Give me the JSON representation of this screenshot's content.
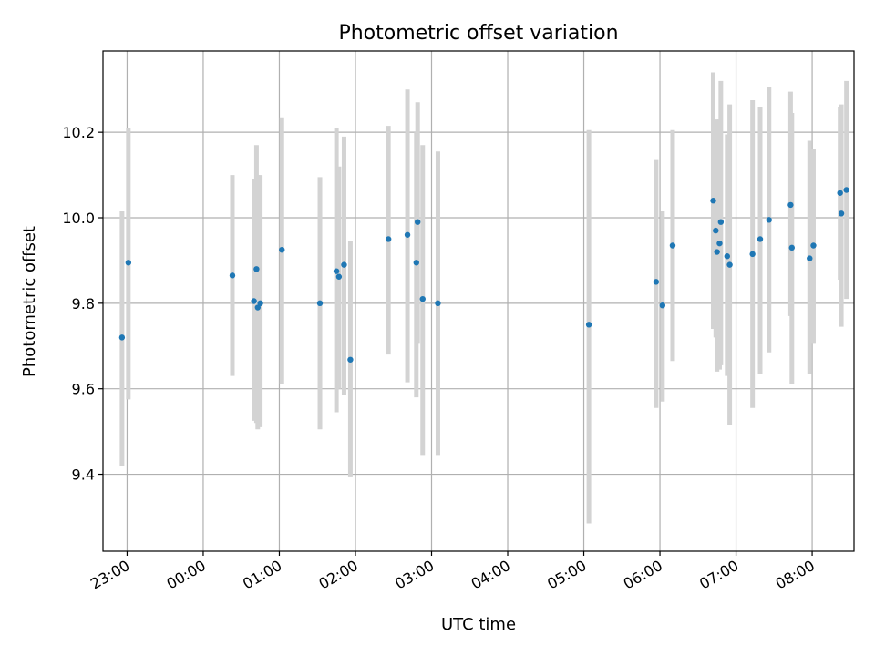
{
  "chart_data": {
    "type": "scatter",
    "title": "Photometric offset variation",
    "xlabel": "UTC time",
    "ylabel": "Photometric offset",
    "x_is_time": true,
    "xlim": [
      "22:41",
      "08:33"
    ],
    "ylim": [
      9.22,
      10.39
    ],
    "yticks": [
      9.4,
      9.6,
      9.8,
      10.0,
      10.2
    ],
    "ytick_labels": [
      "9.4",
      "9.6",
      "9.8",
      "10.0",
      "10.2"
    ],
    "xticks": [
      "23:00",
      "00:00",
      "01:00",
      "02:00",
      "03:00",
      "04:00",
      "05:00",
      "06:00",
      "07:00",
      "08:00"
    ],
    "xtick_labels": [
      "23:00",
      "00:00",
      "01:00",
      "02:00",
      "03:00",
      "04:00",
      "05:00",
      "06:00",
      "07:00",
      "08:00"
    ],
    "grid": true,
    "marker_color": "#1f77b4",
    "errorbar_color": "#d3d3d3",
    "points": [
      {
        "t": "22:56",
        "y": 9.72,
        "lo": 9.42,
        "hi": 10.015
      },
      {
        "t": "23:01",
        "y": 9.895,
        "lo": 9.575,
        "hi": 10.21
      },
      {
        "t": "00:23",
        "y": 9.865,
        "lo": 9.63,
        "hi": 10.1
      },
      {
        "t": "00:40",
        "y": 9.805,
        "lo": 9.525,
        "hi": 10.09
      },
      {
        "t": "00:42",
        "y": 9.88,
        "lo": 9.52,
        "hi": 10.17
      },
      {
        "t": "00:43",
        "y": 9.79,
        "lo": 9.505,
        "hi": 10.1
      },
      {
        "t": "00:45",
        "y": 9.8,
        "lo": 9.51,
        "hi": 10.1
      },
      {
        "t": "01:02",
        "y": 9.925,
        "lo": 9.61,
        "hi": 10.235
      },
      {
        "t": "01:32",
        "y": 9.8,
        "lo": 9.505,
        "hi": 10.095
      },
      {
        "t": "01:45",
        "y": 9.875,
        "lo": 9.545,
        "hi": 10.21
      },
      {
        "t": "01:47",
        "y": 9.862,
        "lo": 9.6,
        "hi": 10.12
      },
      {
        "t": "01:51",
        "y": 9.89,
        "lo": 9.585,
        "hi": 10.19
      },
      {
        "t": "01:56",
        "y": 9.668,
        "lo": 9.395,
        "hi": 9.945
      },
      {
        "t": "02:26",
        "y": 9.95,
        "lo": 9.68,
        "hi": 10.215
      },
      {
        "t": "02:41",
        "y": 9.96,
        "lo": 9.615,
        "hi": 10.3
      },
      {
        "t": "02:48",
        "y": 9.895,
        "lo": 9.58,
        "hi": 10.2
      },
      {
        "t": "02:49",
        "y": 9.99,
        "lo": 9.705,
        "hi": 10.27
      },
      {
        "t": "02:53",
        "y": 9.81,
        "lo": 9.445,
        "hi": 10.17
      },
      {
        "t": "03:05",
        "y": 9.8,
        "lo": 9.445,
        "hi": 10.155
      },
      {
        "t": "05:04",
        "y": 9.75,
        "lo": 9.285,
        "hi": 10.205
      },
      {
        "t": "05:57",
        "y": 9.85,
        "lo": 9.555,
        "hi": 10.135
      },
      {
        "t": "06:02",
        "y": 9.795,
        "lo": 9.57,
        "hi": 10.015
      },
      {
        "t": "06:10",
        "y": 9.935,
        "lo": 9.665,
        "hi": 10.205
      },
      {
        "t": "06:42",
        "y": 10.04,
        "lo": 9.74,
        "hi": 10.34
      },
      {
        "t": "06:44",
        "y": 9.97,
        "lo": 9.72,
        "hi": 10.23
      },
      {
        "t": "06:45",
        "y": 9.92,
        "lo": 9.64,
        "hi": 10.2
      },
      {
        "t": "06:47",
        "y": 9.94,
        "lo": 9.645,
        "hi": 10.23
      },
      {
        "t": "06:48",
        "y": 9.99,
        "lo": 9.655,
        "hi": 10.32
      },
      {
        "t": "06:53",
        "y": 9.91,
        "lo": 9.63,
        "hi": 10.195
      },
      {
        "t": "06:55",
        "y": 9.89,
        "lo": 9.515,
        "hi": 10.265
      },
      {
        "t": "07:13",
        "y": 9.915,
        "lo": 9.555,
        "hi": 10.275
      },
      {
        "t": "07:19",
        "y": 9.95,
        "lo": 9.635,
        "hi": 10.26
      },
      {
        "t": "07:26",
        "y": 9.995,
        "lo": 9.685,
        "hi": 10.305
      },
      {
        "t": "07:43",
        "y": 10.03,
        "lo": 9.77,
        "hi": 10.295
      },
      {
        "t": "07:44",
        "y": 9.93,
        "lo": 9.61,
        "hi": 10.245
      },
      {
        "t": "07:58",
        "y": 9.905,
        "lo": 9.635,
        "hi": 10.18
      },
      {
        "t": "08:01",
        "y": 9.935,
        "lo": 9.705,
        "hi": 10.16
      },
      {
        "t": "08:22",
        "y": 10.058,
        "lo": 9.855,
        "hi": 10.26
      },
      {
        "t": "08:23",
        "y": 10.01,
        "lo": 9.745,
        "hi": 10.265
      },
      {
        "t": "08:27",
        "y": 10.065,
        "lo": 9.81,
        "hi": 10.32
      }
    ]
  }
}
